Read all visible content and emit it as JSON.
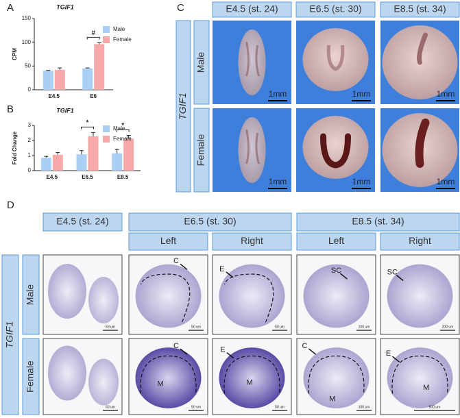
{
  "chart_data": [
    {
      "type": "bar",
      "panel": "A",
      "title": "TGIF1",
      "y_label": "CPM",
      "categories": [
        "E4.5",
        "E6"
      ],
      "series": [
        {
          "name": "Male",
          "color": "#a9cff5",
          "values": [
            40,
            45
          ],
          "errors": [
            1,
            1
          ]
        },
        {
          "name": "Female",
          "color": "#f7a9a9",
          "values": [
            42,
            96
          ],
          "errors": [
            4,
            3
          ]
        }
      ],
      "annotations": [
        null,
        "#"
      ],
      "ylim": [
        0,
        150
      ],
      "yticks": [
        0,
        50,
        100,
        150
      ],
      "legend": "upper-right"
    },
    {
      "type": "bar",
      "panel": "B",
      "title": "TGIF1",
      "y_label": "Fold Change",
      "categories": [
        "E4.5",
        "E6.5",
        "E8.5"
      ],
      "series": [
        {
          "name": "Male",
          "color": "#a9cff5",
          "values": [
            0.85,
            1.08,
            1.15
          ],
          "errors": [
            0.1,
            0.25,
            0.25
          ]
        },
        {
          "name": "Female",
          "color": "#f7a9a9",
          "values": [
            1.05,
            2.28,
            2.12
          ],
          "errors": [
            0.15,
            0.25,
            0.22
          ]
        }
      ],
      "annotations": [
        null,
        "*",
        "*"
      ],
      "ylim": [
        0,
        3
      ],
      "yticks": [
        0,
        1,
        2,
        3
      ],
      "legend": "upper-right"
    }
  ],
  "panel_c": {
    "label": "C",
    "gene": "TGIF1",
    "columns": [
      "E4.5 (st. 24)",
      "E6.5 (st. 30)",
      "E8.5 (st. 34)"
    ],
    "rows": [
      "Male",
      "Female"
    ],
    "scale_bars": [
      [
        "1mm",
        "1mm",
        "1mm"
      ],
      [
        "1mm",
        "1mm",
        "1mm"
      ]
    ]
  },
  "panel_d": {
    "label": "D",
    "gene": "TGIF1",
    "stages": [
      "E4.5 (st. 24)",
      "E6.5 (st. 30)",
      "E8.5 (st. 34)"
    ],
    "sides": [
      "Left",
      "Right",
      "Left",
      "Right"
    ],
    "rows": [
      "Male",
      "Female"
    ],
    "images": [
      [
        {
          "labels": [],
          "scale": "50 um"
        },
        {
          "labels": [
            "C"
          ],
          "scale": "50 um"
        },
        {
          "labels": [
            "E"
          ],
          "scale": "50 um"
        },
        {
          "labels": [
            "SC"
          ],
          "scale": "100 um"
        },
        {
          "labels": [
            "SC"
          ],
          "scale": "200 um"
        }
      ],
      [
        {
          "labels": [],
          "scale": "50 um"
        },
        {
          "labels": [
            "C",
            "M"
          ],
          "scale": "50 um"
        },
        {
          "labels": [
            "E",
            "M"
          ],
          "scale": "50 um"
        },
        {
          "labels": [
            "C",
            "M"
          ],
          "scale": "100 um"
        },
        {
          "labels": [
            "E",
            "M"
          ],
          "scale": "500 um"
        }
      ]
    ]
  }
}
